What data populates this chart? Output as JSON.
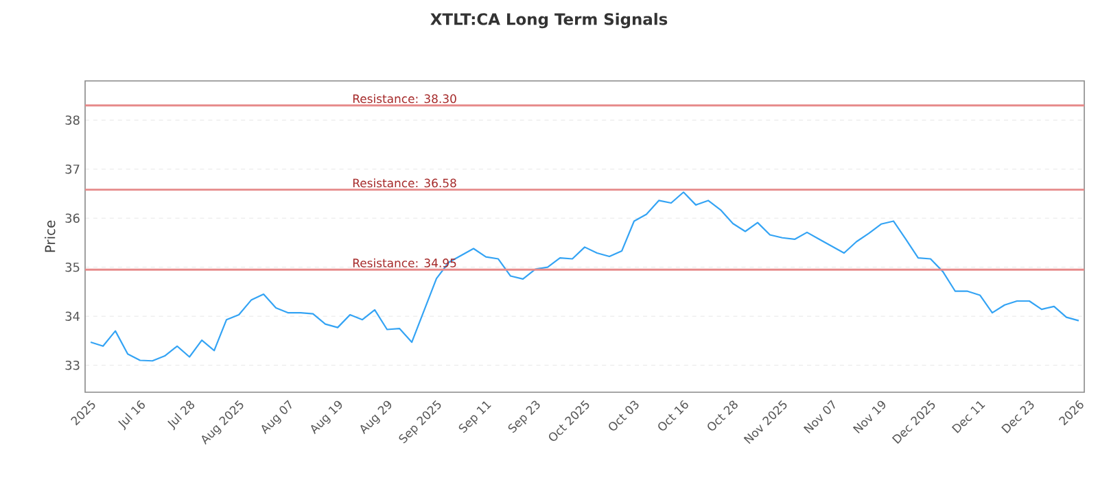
{
  "chart_data": {
    "type": "line",
    "title": "XTLT:CA Long Term Signals",
    "ylabel": "Price",
    "categories": [
      "2025",
      null,
      null,
      null,
      "Jul 16",
      null,
      null,
      null,
      "Jul 28",
      null,
      null,
      null,
      "Aug 2025",
      null,
      null,
      null,
      "Aug 07",
      null,
      null,
      null,
      "Aug 19",
      null,
      null,
      null,
      "Aug 29",
      null,
      null,
      null,
      "Sep 2025",
      null,
      null,
      null,
      "Sep 11",
      null,
      null,
      null,
      "Sep 23",
      null,
      null,
      null,
      "Oct 2025",
      null,
      null,
      null,
      "Oct 03",
      null,
      null,
      null,
      "Oct 16",
      null,
      null,
      null,
      "Oct 28",
      null,
      null,
      null,
      "Nov 2025",
      null,
      null,
      null,
      "Nov 07",
      null,
      null,
      null,
      "Nov 19",
      null,
      null,
      null,
      "Dec 2025",
      null,
      null,
      null,
      "Dec 11",
      null,
      null,
      null,
      "Dec 23",
      null,
      null,
      null,
      "2026"
    ],
    "series": [
      {
        "color": "#33a3f4",
        "values": [
          33.47,
          33.39,
          33.7,
          33.23,
          33.1,
          33.09,
          33.19,
          33.39,
          33.17,
          33.51,
          33.3,
          33.93,
          34.03,
          34.33,
          34.45,
          34.17,
          34.07,
          34.07,
          34.05,
          33.84,
          33.77,
          34.03,
          33.93,
          34.13,
          33.73,
          33.75,
          33.47,
          34.12,
          34.77,
          35.1,
          35.24,
          35.38,
          35.21,
          35.17,
          34.82,
          34.76,
          34.96,
          35.0,
          35.19,
          35.17,
          35.41,
          35.29,
          35.22,
          35.33,
          35.94,
          36.08,
          36.36,
          36.31,
          36.53,
          36.27,
          36.36,
          36.17,
          35.89,
          35.73,
          35.91,
          35.66,
          35.6,
          35.57,
          35.71,
          35.57,
          35.43,
          35.29,
          35.52,
          35.69,
          35.88,
          35.94,
          35.57,
          35.19,
          35.17,
          34.91,
          34.51,
          34.51,
          34.43,
          34.07,
          34.23,
          34.31,
          34.31,
          34.14,
          34.2,
          33.98,
          33.91
        ]
      }
    ],
    "ylim": [
      32.45,
      38.8
    ],
    "yticks": [
      33,
      34,
      35,
      36,
      37,
      38
    ],
    "grid": "y",
    "marker": "none",
    "line_style": "solid",
    "legend": false,
    "ref_lines": [
      {
        "axis": "y",
        "value": 38.3,
        "label": "Resistance: 38.30",
        "color": "#e68a8a"
      },
      {
        "axis": "y",
        "value": 36.58,
        "label": "Resistance: 36.58",
        "color": "#e68a8a"
      },
      {
        "axis": "y",
        "value": 34.95,
        "label": "Resistance: 34.95",
        "color": "#e68a8a"
      }
    ]
  }
}
